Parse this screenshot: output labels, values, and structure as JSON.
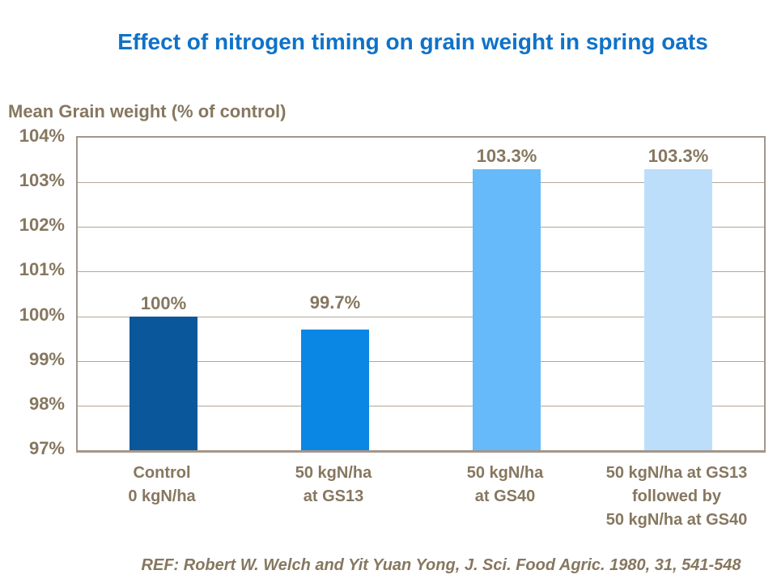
{
  "reference": "REF: Robert W. Welch and Yit Yuan Yong, J. Sci. Food Agric. 1980, 31, 541-548",
  "colors": {
    "title": "#0f72c8",
    "text": "#86775f",
    "grid": "#b2a797",
    "plot_border": "#a3968a",
    "background": "#ffffff"
  },
  "chart_data": {
    "type": "bar",
    "title": "Effect of nitrogen timing on grain weight in spring oats",
    "ylabel": "Mean Grain weight (% of control)",
    "xlabel": "",
    "categories": [
      [
        "Control",
        "0 kgN/ha"
      ],
      [
        "50 kgN/ha",
        "at GS13"
      ],
      [
        "50 kgN/ha",
        "at GS40"
      ],
      [
        "50 kgN/ha at GS13",
        "followed by",
        "50 kgN/ha at GS40"
      ]
    ],
    "values": [
      100,
      99.7,
      103.3,
      103.3
    ],
    "value_labels": [
      "100%",
      "99.7%",
      "103.3%",
      "103.3%"
    ],
    "bar_colors": [
      "#0b579c",
      "#0a86e4",
      "#66baf9",
      "#bcdefb"
    ],
    "ylim": [
      97,
      104
    ],
    "yticks": [
      "104%",
      "103%",
      "102%",
      "101%",
      "100%",
      "99%",
      "98%",
      "97%"
    ],
    "grid": true,
    "legend": false
  }
}
